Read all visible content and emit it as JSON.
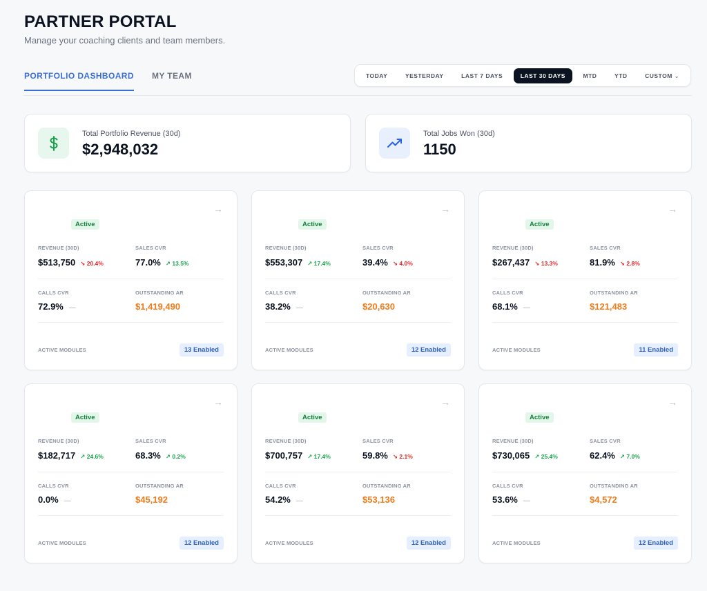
{
  "header": {
    "title": "PARTNER PORTAL",
    "subtitle": "Manage your coaching clients and team members."
  },
  "tabs": [
    "PORTFOLIO DASHBOARD",
    "MY TEAM"
  ],
  "active_tab": "PORTFOLIO DASHBOARD",
  "date_range": {
    "options": [
      "TODAY",
      "YESTERDAY",
      "LAST 7 DAYS",
      "LAST 30 DAYS",
      "MTD",
      "YTD",
      "CUSTOM"
    ],
    "selected": "LAST 30 DAYS"
  },
  "summary": {
    "revenue": {
      "label": "Total Portfolio Revenue (30d)",
      "value": "$2,948,032",
      "icon": "dollar-icon",
      "color": "#16a34a"
    },
    "jobs": {
      "label": "Total Jobs Won (30d)",
      "value": "1150",
      "icon": "trending-up-icon",
      "color": "#2563eb"
    }
  },
  "labels": {
    "revenue": "REVENUE (30D)",
    "sales_cvr": "SALES CVR",
    "calls_cvr": "CALLS CVR",
    "outstanding_ar": "OUTSTANDING AR",
    "active_modules": "ACTIVE MODULES",
    "status": "Active"
  },
  "clients": [
    {
      "revenue": "$513,750",
      "revenue_trend": "20.4%",
      "revenue_dir": "down",
      "sales_cvr": "77.0%",
      "sales_trend": "13.5%",
      "sales_dir": "up",
      "calls_cvr": "72.9%",
      "outstanding_ar": "$1,419,490",
      "modules": "13 Enabled"
    },
    {
      "revenue": "$553,307",
      "revenue_trend": "17.4%",
      "revenue_dir": "up",
      "sales_cvr": "39.4%",
      "sales_trend": "4.0%",
      "sales_dir": "down",
      "calls_cvr": "38.2%",
      "outstanding_ar": "$20,630",
      "modules": "12 Enabled"
    },
    {
      "revenue": "$267,437",
      "revenue_trend": "13.3%",
      "revenue_dir": "down",
      "sales_cvr": "81.9%",
      "sales_trend": "2.8%",
      "sales_dir": "down",
      "calls_cvr": "68.1%",
      "outstanding_ar": "$121,483",
      "modules": "11 Enabled"
    },
    {
      "revenue": "$182,717",
      "revenue_trend": "24.6%",
      "revenue_dir": "up",
      "sales_cvr": "68.3%",
      "sales_trend": "0.2%",
      "sales_dir": "up",
      "calls_cvr": "0.0%",
      "outstanding_ar": "$45,192",
      "modules": "12 Enabled"
    },
    {
      "revenue": "$700,757",
      "revenue_trend": "17.4%",
      "revenue_dir": "up",
      "sales_cvr": "59.8%",
      "sales_trend": "2.1%",
      "sales_dir": "down",
      "calls_cvr": "54.2%",
      "outstanding_ar": "$53,136",
      "modules": "12 Enabled"
    },
    {
      "revenue": "$730,065",
      "revenue_trend": "25.4%",
      "revenue_dir": "up",
      "sales_cvr": "62.4%",
      "sales_trend": "7.0%",
      "sales_dir": "up",
      "calls_cvr": "53.6%",
      "outstanding_ar": "$4,572",
      "modules": "12 Enabled"
    }
  ]
}
